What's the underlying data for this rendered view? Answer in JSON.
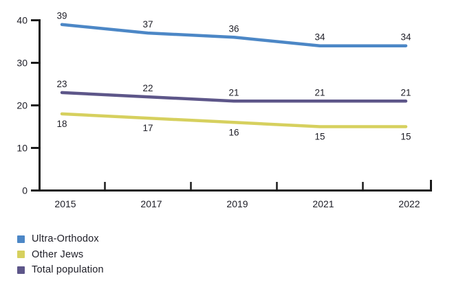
{
  "chart_data": {
    "type": "line",
    "categories": [
      "2015",
      "2017",
      "2019",
      "2021",
      "2022"
    ],
    "series": [
      {
        "name": "Ultra-Orthodox",
        "color": "#4c87c6",
        "values": [
          39,
          37,
          36,
          34,
          34
        ],
        "label_position": "above"
      },
      {
        "name": "Other Jews",
        "color": "#d6d05e",
        "values": [
          18,
          17,
          16,
          15,
          15
        ],
        "label_position": "below"
      },
      {
        "name": "Total population",
        "color": "#5d5689",
        "values": [
          23,
          22,
          21,
          21,
          21
        ],
        "label_position": "above"
      }
    ],
    "title": "",
    "xlabel": "",
    "ylabel": "",
    "y_ticks": [
      0,
      10,
      20,
      30,
      40
    ],
    "ylim": [
      0,
      40
    ],
    "grid": false,
    "legend_position": "bottom-left",
    "axis_color": "#1a1a1a",
    "text_color": "#1d1d26"
  },
  "legend": {
    "items": [
      {
        "label": "Ultra-Orthodox"
      },
      {
        "label": "Other Jews"
      },
      {
        "label": "Total population"
      }
    ]
  }
}
